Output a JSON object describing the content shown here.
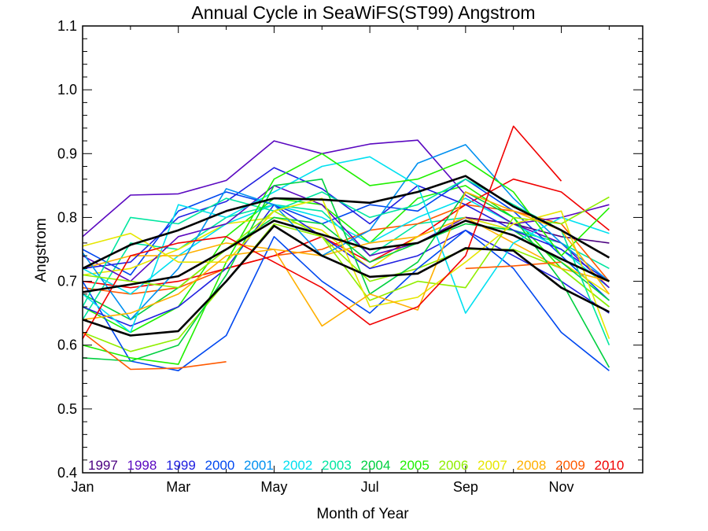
{
  "chart_data": {
    "type": "line",
    "title": "Annual Cycle in SeaWiFS(ST99) Angstrom",
    "xlabel": "Month of Year",
    "ylabel": "Angstrom",
    "x": [
      1,
      2,
      3,
      4,
      5,
      6,
      7,
      8,
      9,
      10,
      11,
      12
    ],
    "xlim": [
      1,
      12.7
    ],
    "ylim": [
      0.4,
      1.1
    ],
    "x_ticks": [
      {
        "value": 1,
        "label": "Jan"
      },
      {
        "value": 3,
        "label": "Mar"
      },
      {
        "value": 5,
        "label": "May"
      },
      {
        "value": 7,
        "label": "Jul"
      },
      {
        "value": 9,
        "label": "Sep"
      },
      {
        "value": 11,
        "label": "Nov"
      }
    ],
    "y_ticks": [
      "0.4",
      "0.5",
      "0.6",
      "0.7",
      "0.8",
      "0.9",
      "1.0",
      "1.1"
    ],
    "legend_placement": "bottom",
    "series": [
      {
        "name": "1997",
        "color": "#4b0080",
        "values": [
          null,
          null,
          null,
          null,
          null,
          null,
          null,
          null,
          0.8,
          0.79,
          0.77,
          0.76
        ]
      },
      {
        "name": "1998",
        "color": "#5a08c0",
        "values": [
          0.77,
          0.835,
          0.837,
          0.858,
          0.92,
          0.9,
          0.915,
          0.921,
          0.835,
          0.79,
          0.8,
          0.82
        ]
      },
      {
        "name": "1999",
        "color": "#2020e0",
        "values": [
          0.72,
          0.73,
          0.8,
          0.825,
          0.878,
          0.845,
          0.79,
          0.85,
          0.82,
          0.78,
          0.75,
          0.7
        ]
      },
      {
        "name": "2000",
        "color": "#0048f0",
        "values": [
          0.7,
          0.575,
          0.56,
          0.615,
          0.77,
          0.7,
          0.65,
          0.72,
          0.78,
          0.72,
          0.62,
          0.56
        ]
      },
      {
        "name": "2001",
        "color": "#0090f0",
        "values": [
          0.745,
          0.64,
          0.72,
          0.845,
          0.82,
          0.74,
          0.78,
          0.885,
          0.914,
          0.83,
          0.76,
          0.7
        ]
      },
      {
        "name": "2002",
        "color": "#00e0f0",
        "values": [
          0.68,
          0.62,
          0.82,
          0.8,
          0.84,
          0.88,
          0.895,
          0.85,
          0.65,
          0.76,
          0.8,
          0.775
        ]
      },
      {
        "name": "2003",
        "color": "#00e6a0",
        "values": [
          0.66,
          0.8,
          0.79,
          0.83,
          0.81,
          0.84,
          0.8,
          0.82,
          0.86,
          0.82,
          0.78,
          0.6
        ]
      },
      {
        "name": "2004",
        "color": "#00d040",
        "values": [
          0.58,
          0.575,
          0.6,
          0.71,
          0.85,
          0.86,
          0.68,
          0.73,
          0.84,
          0.8,
          0.7,
          0.565
        ]
      },
      {
        "name": "2005",
        "color": "#20f000",
        "values": [
          0.6,
          0.58,
          0.57,
          0.73,
          0.86,
          0.9,
          0.85,
          0.86,
          0.89,
          0.84,
          0.74,
          0.815
        ]
      },
      {
        "name": "2006",
        "color": "#90ee00",
        "values": [
          0.71,
          0.7,
          0.69,
          0.75,
          0.81,
          0.77,
          0.67,
          0.7,
          0.69,
          0.8,
          0.79,
          0.832
        ]
      },
      {
        "name": "2007",
        "color": "#e6e600",
        "values": [
          0.755,
          0.775,
          0.73,
          0.73,
          0.81,
          0.83,
          0.66,
          0.675,
          0.73,
          0.79,
          0.81,
          0.61
        ]
      },
      {
        "name": "2008",
        "color": "#ffb000",
        "values": [
          0.64,
          0.65,
          0.68,
          0.74,
          0.75,
          0.63,
          0.68,
          0.655,
          0.84,
          0.81,
          0.78,
          0.68
        ]
      },
      {
        "name": "2009",
        "color": "#ff5a00",
        "values": [
          0.62,
          0.562,
          0.564,
          0.574,
          null,
          null,
          null,
          null,
          0.72,
          0.724,
          0.73,
          null
        ]
      },
      {
        "name": "2010",
        "color": "#f00000",
        "values": [
          0.61,
          0.74,
          0.76,
          0.77,
          0.73,
          0.69,
          0.632,
          0.66,
          0.74,
          0.943,
          0.857,
          null
        ]
      }
    ],
    "extra_series": [
      {
        "color": "#00e6a0",
        "values": [
          0.64,
          0.76,
          0.75,
          0.8,
          0.82,
          0.81,
          0.74,
          0.79,
          0.8,
          0.78,
          0.76,
          0.72
        ]
      },
      {
        "color": "#20f000",
        "values": [
          0.66,
          0.62,
          0.66,
          0.77,
          0.83,
          0.82,
          0.76,
          0.83,
          0.85,
          0.8,
          0.72,
          0.66
        ]
      },
      {
        "color": "#0048f0",
        "values": [
          0.75,
          0.71,
          0.81,
          0.84,
          0.82,
          0.79,
          0.82,
          0.81,
          0.86,
          0.81,
          0.74,
          0.67
        ]
      },
      {
        "color": "#ff5a00",
        "values": [
          0.69,
          0.68,
          0.69,
          0.72,
          0.74,
          0.75,
          0.78,
          0.79,
          0.82,
          0.81,
          0.79,
          0.7
        ]
      },
      {
        "color": "#f00000",
        "values": [
          0.7,
          0.69,
          0.7,
          0.72,
          0.74,
          0.77,
          0.73,
          0.77,
          0.82,
          0.86,
          0.84,
          0.78
        ]
      },
      {
        "color": "#e6e600",
        "values": [
          0.71,
          0.72,
          0.75,
          0.79,
          0.8,
          0.78,
          0.72,
          0.77,
          0.8,
          0.78,
          0.73,
          0.68
        ]
      },
      {
        "color": "#00e0f0",
        "values": [
          0.72,
          0.68,
          0.74,
          0.79,
          0.82,
          0.8,
          0.76,
          0.8,
          0.83,
          0.79,
          0.75,
          0.69
        ]
      },
      {
        "color": "#5a08c0",
        "values": [
          0.74,
          0.7,
          0.77,
          0.79,
          0.85,
          0.82,
          0.74,
          0.76,
          0.8,
          0.79,
          0.76,
          0.69
        ]
      },
      {
        "color": "#2020e0",
        "values": [
          0.66,
          0.63,
          0.66,
          0.72,
          0.82,
          0.77,
          0.72,
          0.74,
          0.78,
          0.74,
          0.7,
          0.65
        ]
      },
      {
        "color": "#90ee00",
        "values": [
          0.62,
          0.59,
          0.61,
          0.7,
          0.79,
          0.77,
          0.7,
          0.72,
          0.75,
          0.75,
          0.72,
          0.66
        ]
      },
      {
        "color": "#ffb000",
        "values": [
          0.72,
          0.74,
          0.74,
          0.76,
          0.75,
          0.74,
          0.76,
          0.77,
          0.8,
          0.76,
          0.72,
          0.7
        ]
      },
      {
        "color": "#00d040",
        "values": [
          0.68,
          0.64,
          0.69,
          0.75,
          0.8,
          0.79,
          0.73,
          0.76,
          0.79,
          0.78,
          0.73,
          0.67
        ]
      }
    ],
    "black_series": [
      {
        "color": "#000000",
        "values": [
          0.72,
          0.757,
          0.78,
          0.81,
          0.83,
          0.828,
          0.823,
          0.84,
          0.865,
          0.817,
          0.78,
          0.737
        ]
      },
      {
        "color": "#000000",
        "values": [
          0.683,
          0.695,
          0.708,
          0.75,
          0.795,
          0.773,
          0.75,
          0.76,
          0.795,
          0.772,
          0.735,
          0.7
        ]
      },
      {
        "color": "#000000",
        "values": [
          0.64,
          0.615,
          0.622,
          0.7,
          0.787,
          0.74,
          0.707,
          0.712,
          0.752,
          0.748,
          0.69,
          0.652
        ]
      }
    ]
  }
}
